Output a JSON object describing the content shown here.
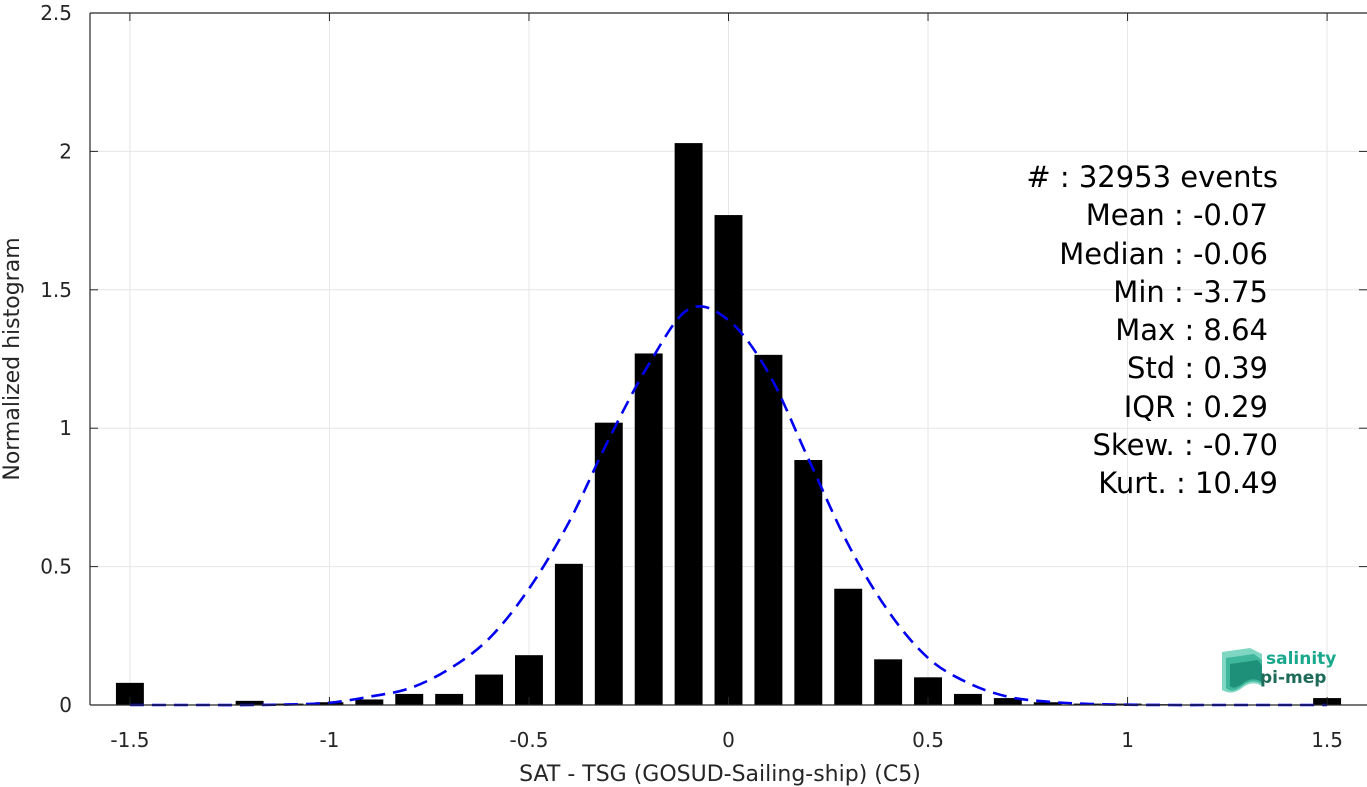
{
  "chart_data": {
    "type": "bar",
    "xlabel": "SAT - TSG (GOSUD-Sailing-ship) (C5)",
    "ylabel": "Normalized histogram",
    "xlim": [
      -1.6,
      1.6
    ],
    "ylim": [
      0,
      2.5
    ],
    "xticks": [
      -1.5,
      -1,
      -0.5,
      0,
      0.5,
      1,
      1.5
    ],
    "xtick_labels": [
      "-1.5",
      "-1",
      "-0.5",
      "0",
      "0.5",
      "1",
      "1.5"
    ],
    "yticks": [
      0,
      0.5,
      1,
      1.5,
      2,
      2.5
    ],
    "ytick_labels": [
      "0",
      "0.5",
      "1",
      "1.5",
      "2",
      "2.5"
    ],
    "grid": true,
    "bar_width": 0.07,
    "x": [
      -1.5,
      -1.4,
      -1.3,
      -1.2,
      -1.1,
      -1.0,
      -0.9,
      -0.8,
      -0.7,
      -0.6,
      -0.5,
      -0.4,
      -0.3,
      -0.2,
      -0.1,
      0.0,
      0.1,
      0.2,
      0.3,
      0.4,
      0.5,
      0.6,
      0.7,
      0.8,
      0.9,
      1.0,
      1.1,
      1.2,
      1.3,
      1.4,
      1.5
    ],
    "values": [
      0.08,
      0.0,
      0.0,
      0.015,
      0.005,
      0.01,
      0.02,
      0.04,
      0.04,
      0.11,
      0.18,
      0.51,
      1.02,
      1.27,
      2.03,
      1.77,
      1.265,
      0.885,
      0.42,
      0.165,
      0.1,
      0.04,
      0.025,
      0.01,
      0.005,
      0.005,
      0.003,
      0.0,
      0.0,
      0.0,
      0.025
    ],
    "bar_color": "#000000",
    "fit_curve": {
      "style": "dashed",
      "color": "#0000ee",
      "x": [
        -1.5,
        -1.4,
        -1.3,
        -1.2,
        -1.1,
        -1.0,
        -0.9,
        -0.8,
        -0.7,
        -0.6,
        -0.5,
        -0.4,
        -0.3,
        -0.2,
        -0.1,
        0.0,
        0.1,
        0.2,
        0.3,
        0.4,
        0.5,
        0.6,
        0.7,
        0.8,
        0.9,
        1.0,
        1.1,
        1.2,
        1.3,
        1.4,
        1.5
      ],
      "y": [
        0.0,
        0.0,
        0.0,
        0.0,
        0.002,
        0.008,
        0.03,
        0.06,
        0.13,
        0.24,
        0.42,
        0.66,
        0.96,
        1.23,
        1.43,
        1.39,
        1.2,
        0.89,
        0.58,
        0.34,
        0.17,
        0.08,
        0.03,
        0.012,
        0.004,
        0.001,
        0.0,
        0.0,
        0.0,
        0.0,
        0.0
      ]
    }
  },
  "stats": [
    "#  : 32953 events",
    "Mean : -0.07",
    "Median : -0.06",
    "Min : -3.75",
    "Max : 8.64",
    "Std : 0.39",
    "IQR : 0.29",
    "Skew. : -0.70",
    "Kurt. : 10.49"
  ],
  "logo": {
    "line1": "salinity",
    "line2": "pi-mep",
    "color1": "#1aa88c",
    "color2": "#1e6b5a"
  }
}
